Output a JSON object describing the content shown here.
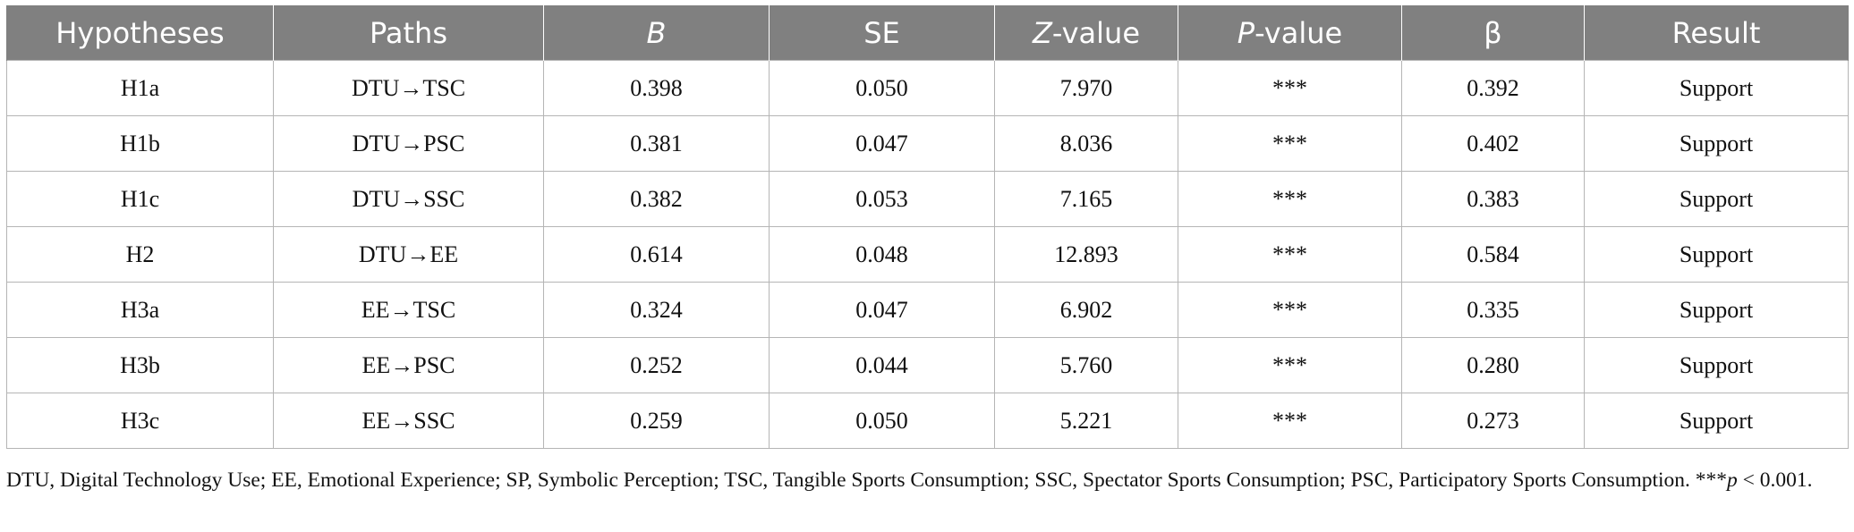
{
  "table": {
    "headers": [
      {
        "pre": "Hypotheses",
        "italic": "",
        "post": ""
      },
      {
        "pre": "Paths",
        "italic": "",
        "post": ""
      },
      {
        "pre": "",
        "italic": "B",
        "post": ""
      },
      {
        "pre": "SE",
        "italic": "",
        "post": ""
      },
      {
        "pre": "",
        "italic": "Z",
        "post": "-value"
      },
      {
        "pre": "",
        "italic": "P",
        "post": "-value"
      },
      {
        "pre": "β",
        "italic": "",
        "post": ""
      },
      {
        "pre": "Result",
        "italic": "",
        "post": ""
      }
    ],
    "rows": [
      [
        "H1a",
        "DTU→TSC",
        "0.398",
        "0.050",
        "7.970",
        "***",
        "0.392",
        "Support"
      ],
      [
        "H1b",
        "DTU→PSC",
        "0.381",
        "0.047",
        "8.036",
        "***",
        "0.402",
        "Support"
      ],
      [
        "H1c",
        "DTU→SSC",
        "0.382",
        "0.053",
        "7.165",
        "***",
        "0.383",
        "Support"
      ],
      [
        "H2",
        "DTU→EE",
        "0.614",
        "0.048",
        "12.893",
        "***",
        "0.584",
        "Support"
      ],
      [
        "H3a",
        "EE→TSC",
        "0.324",
        "0.047",
        "6.902",
        "***",
        "0.335",
        "Support"
      ],
      [
        "H3b",
        "EE→PSC",
        "0.252",
        "0.044",
        "5.760",
        "***",
        "0.280",
        "Support"
      ],
      [
        "H3c",
        "EE→SSC",
        "0.259",
        "0.050",
        "5.221",
        "***",
        "0.273",
        "Support"
      ]
    ]
  },
  "footnote": {
    "text": "DTU, Digital Technology Use; EE, Emotional Experience; SP, Symbolic Perception; TSC, Tangible Sports Consumption; SSC, Spectator Sports Consumption; PSC, Participatory Sports Consumption. ***",
    "p_italic": "p",
    "p_rest": " < 0.001."
  }
}
